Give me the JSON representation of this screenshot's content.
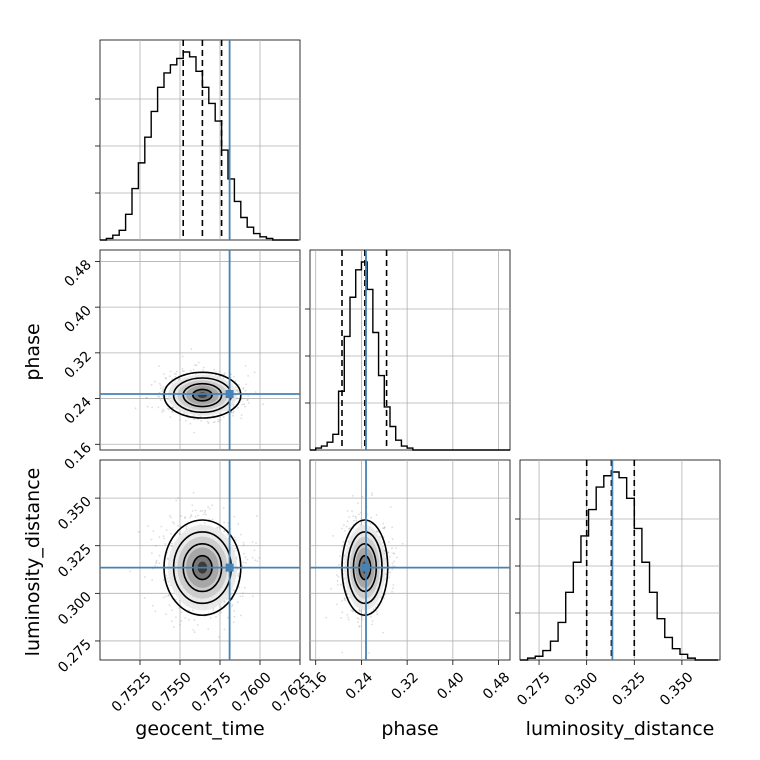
{
  "chart_data": {
    "type": "corner",
    "parameters": [
      "geocent_time",
      "phase",
      "luminosity_distance"
    ],
    "truths": {
      "geocent_time": 0.7581,
      "phase": 0.248,
      "luminosity_distance": 0.3135
    },
    "colors": {
      "truth": "#4682b4",
      "hist": "#000000",
      "grid": "#b0b0b0",
      "scatter": "#9e9e9e"
    },
    "axes": {
      "geocent_time": {
        "range": [
          0.75,
          0.7625
        ],
        "ticks": [
          "0.7525",
          "0.7550",
          "0.7575",
          "0.7600",
          "0.7625"
        ],
        "tick_values": [
          0.7525,
          0.755,
          0.7575,
          0.76,
          0.7625
        ]
      },
      "phase": {
        "range": [
          0.15,
          0.5
        ],
        "ticks": [
          "0.16",
          "0.24",
          "0.32",
          "0.40",
          "0.48"
        ],
        "tick_values": [
          0.16,
          0.24,
          0.32,
          0.4,
          0.48
        ]
      },
      "luminosity_distance": {
        "range": [
          0.265,
          0.37
        ],
        "ticks": [
          "0.275",
          "0.300",
          "0.325",
          "0.350"
        ],
        "tick_values": [
          0.275,
          0.3,
          0.325,
          0.35
        ]
      }
    },
    "histograms": {
      "geocent_time": {
        "bins": [
          0.75,
          0.7504,
          0.7508,
          0.7512,
          0.7516,
          0.752,
          0.7524,
          0.7528,
          0.7532,
          0.7536,
          0.754,
          0.7544,
          0.7548,
          0.7552,
          0.7556,
          0.756,
          0.7564,
          0.7568,
          0.7572,
          0.7576,
          0.758,
          0.7584,
          0.7588,
          0.7592,
          0.7596,
          0.76,
          0.7604,
          0.7608,
          0.7612,
          0.7616,
          0.762,
          0.7624
        ],
        "counts": [
          0,
          1,
          3,
          6,
          16,
          32,
          48,
          64,
          80,
          95,
          104,
          109,
          113,
          117,
          114,
          105,
          95,
          85,
          74,
          56,
          38,
          24,
          14,
          8,
          4,
          2,
          1,
          0,
          0,
          0,
          0
        ],
        "quantiles": [
          0.7552,
          0.7564,
          0.7576
        ]
      },
      "phase": {
        "bins": [
          0.15,
          0.16,
          0.17,
          0.18,
          0.19,
          0.2,
          0.21,
          0.22,
          0.23,
          0.24,
          0.25,
          0.26,
          0.27,
          0.28,
          0.29,
          0.3,
          0.31,
          0.32,
          0.33,
          0.34,
          0.35,
          0.36,
          0.37,
          0.38,
          0.39,
          0.4,
          0.41,
          0.42,
          0.43,
          0.44,
          0.45,
          0.46,
          0.47,
          0.48,
          0.49,
          0.5
        ],
        "counts": [
          0,
          1,
          2,
          4,
          8,
          30,
          58,
          78,
          92,
          96,
          82,
          60,
          38,
          22,
          12,
          5,
          2,
          1,
          0,
          0,
          0,
          0,
          0,
          0,
          0,
          0,
          0,
          0,
          0,
          0,
          0,
          0,
          0,
          0,
          0
        ],
        "quantiles": [
          0.206,
          0.246,
          0.284
        ]
      },
      "luminosity_distance": {
        "bins": [
          0.265,
          0.269,
          0.273,
          0.277,
          0.281,
          0.285,
          0.289,
          0.293,
          0.297,
          0.301,
          0.305,
          0.309,
          0.313,
          0.317,
          0.321,
          0.325,
          0.329,
          0.333,
          0.337,
          0.341,
          0.345,
          0.349,
          0.353,
          0.357,
          0.361,
          0.365,
          0.369
        ],
        "counts": [
          0,
          1,
          2,
          5,
          10,
          20,
          36,
          52,
          66,
          80,
          92,
          98,
          100,
          97,
          86,
          70,
          52,
          36,
          22,
          12,
          6,
          3,
          1,
          0,
          0,
          0
        ],
        "quantiles": [
          0.3,
          0.313,
          0.325
        ]
      }
    },
    "contour_levels": [
      "0.5 sigma",
      "1 sigma",
      "1.5 sigma",
      "2 sigma"
    ],
    "xlabels": [
      "geocent_time",
      "phase",
      "luminosity_distance"
    ],
    "ylabels": [
      "phase",
      "luminosity_distance"
    ],
    "grid": true
  }
}
